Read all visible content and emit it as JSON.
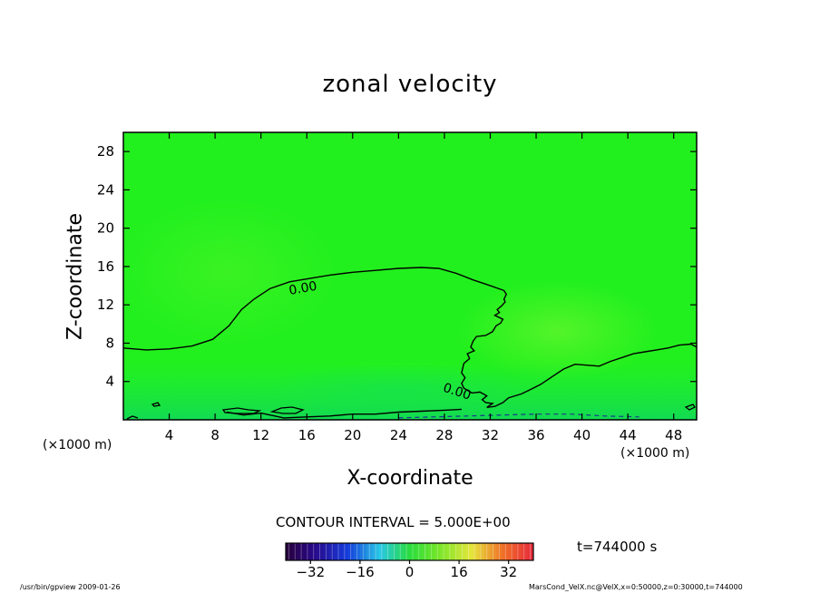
{
  "chart_data": {
    "type": "heatmap",
    "title": "zonal velocity",
    "xlabel": "X-coordinate",
    "ylabel": "Z-coordinate",
    "x_unit_label": "(×1000 m)",
    "y_unit_label": "(×1000 m)",
    "xlim": [
      0,
      50
    ],
    "ylim": [
      0,
      30
    ],
    "x_ticks": [
      4,
      8,
      12,
      16,
      20,
      24,
      28,
      32,
      36,
      40,
      44,
      48
    ],
    "y_ticks": [
      4,
      8,
      12,
      16,
      20,
      24,
      28
    ],
    "grid": false,
    "contour_interval_text": "CONTOUR INTERVAL = 5.000E+00",
    "contour_label": "0.00",
    "zero_contour_main": [
      [
        0,
        7.5
      ],
      [
        2,
        7.3
      ],
      [
        4,
        7.4
      ],
      [
        6,
        7.7
      ],
      [
        7.8,
        8.4
      ],
      [
        9.2,
        9.8
      ],
      [
        10.3,
        11.5
      ],
      [
        11.4,
        12.6
      ],
      [
        12.8,
        13.7
      ],
      [
        14.5,
        14.4
      ],
      [
        16.5,
        14.8
      ],
      [
        18,
        15.1
      ],
      [
        20,
        15.4
      ],
      [
        22,
        15.6
      ],
      [
        24,
        15.8
      ],
      [
        26,
        15.9
      ],
      [
        27.5,
        15.8
      ],
      [
        29,
        15.3
      ],
      [
        30.5,
        14.6
      ],
      [
        32,
        14.0
      ],
      [
        33.2,
        13.5
      ],
      [
        33.4,
        13.1
      ],
      [
        33.2,
        12.6
      ],
      [
        33.3,
        12.3
      ],
      [
        33.0,
        11.9
      ],
      [
        32.6,
        11.5
      ],
      [
        32.8,
        11.2
      ],
      [
        32.4,
        10.9
      ],
      [
        33.1,
        10.5
      ],
      [
        32.9,
        10.1
      ],
      [
        32.5,
        9.8
      ],
      [
        32.2,
        9.2
      ],
      [
        31.6,
        8.8
      ],
      [
        30.8,
        8.7
      ],
      [
        30.5,
        8.2
      ],
      [
        30.3,
        7.6
      ],
      [
        30.6,
        7.2
      ],
      [
        30.0,
        6.9
      ],
      [
        30.2,
        6.4
      ],
      [
        29.7,
        5.9
      ],
      [
        29.5,
        4.9
      ],
      [
        29.8,
        4.4
      ],
      [
        29.5,
        3.8
      ],
      [
        29.7,
        3.3
      ],
      [
        30.4,
        2.8
      ],
      [
        31.1,
        2.9
      ],
      [
        31.7,
        2.5
      ],
      [
        31.3,
        2.1
      ],
      [
        31.6,
        1.8
      ],
      [
        32.2,
        1.7
      ],
      [
        31.7,
        1.3
      ],
      [
        32.4,
        1.4
      ],
      [
        33.1,
        1.8
      ],
      [
        33.6,
        2.3
      ],
      [
        34.7,
        2.7
      ],
      [
        35.4,
        3.1
      ],
      [
        36.4,
        3.7
      ],
      [
        37.4,
        4.5
      ],
      [
        38.4,
        5.3
      ],
      [
        39.4,
        5.8
      ],
      [
        40.5,
        5.7
      ],
      [
        41.5,
        5.6
      ],
      [
        42.5,
        6.1
      ],
      [
        43.5,
        6.5
      ],
      [
        44.5,
        6.9
      ],
      [
        45.5,
        7.1
      ],
      [
        46.5,
        7.3
      ],
      [
        47.5,
        7.5
      ],
      [
        48.5,
        7.8
      ],
      [
        49.5,
        7.9
      ],
      [
        50,
        7.6
      ]
    ],
    "zero_contour_lower": [
      [
        9,
        0.8
      ],
      [
        10.5,
        0.5
      ],
      [
        12,
        0.7
      ],
      [
        14,
        0.2
      ],
      [
        16,
        0.3
      ],
      [
        18,
        0.4
      ],
      [
        20,
        0.6
      ],
      [
        22,
        0.6
      ],
      [
        24,
        0.8
      ],
      [
        26,
        0.9
      ],
      [
        28,
        1.0
      ],
      [
        29.5,
        1.1
      ]
    ],
    "negative_contour_dashed": [
      [
        24,
        0.2
      ],
      [
        27,
        0.3
      ],
      [
        30,
        0.4
      ],
      [
        33,
        0.5
      ],
      [
        36,
        0.6
      ],
      [
        39,
        0.6
      ],
      [
        42,
        0.4
      ],
      [
        45,
        0.3
      ]
    ],
    "colorbar": {
      "ticks": [
        -32,
        -16,
        0,
        16,
        32
      ],
      "range": [
        -40,
        40
      ],
      "colormap": "rainbow (purple to red)"
    },
    "field_color": "#1ef21e",
    "time_label": "t=744000 s"
  },
  "footer": {
    "left": "/usr/bin/gpview  2009-01-26",
    "right": "MarsCond_VelX.nc@VelX,x=0:50000,z=0:30000,t=744000"
  }
}
